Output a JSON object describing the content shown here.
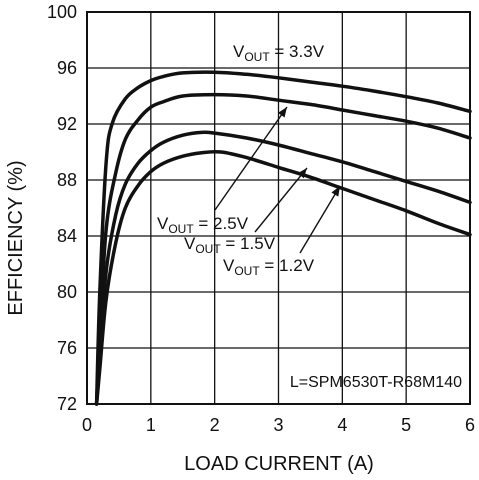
{
  "chart_data": {
    "type": "line",
    "xlabel": "LOAD CURRENT (A)",
    "ylabel": "EFFICIENCY (%)",
    "xlim": [
      0,
      6
    ],
    "ylim": [
      72,
      100
    ],
    "x_ticks": [
      "0",
      "1",
      "2",
      "3",
      "4",
      "5",
      "6"
    ],
    "y_ticks": [
      "72",
      "76",
      "80",
      "84",
      "88",
      "92",
      "96",
      "100"
    ],
    "grid": true,
    "note": "L=SPM6530T-R68M140",
    "series": [
      {
        "label_main": "V",
        "label_sub": "OUT",
        "label_value": " = 3.3V",
        "x": [
          0.15,
          0.2,
          0.3,
          0.4,
          0.6,
          0.8,
          1.0,
          1.2,
          1.5,
          2.0,
          2.5,
          3.0,
          3.5,
          4.0,
          4.5,
          5.0,
          5.5,
          6.0
        ],
        "y": [
          72,
          80,
          89.3,
          92.1,
          93.8,
          94.6,
          95.1,
          95.4,
          95.65,
          95.7,
          95.55,
          95.3,
          95.0,
          94.7,
          94.35,
          93.95,
          93.5,
          92.9
        ]
      },
      {
        "label_main": "V",
        "label_sub": "OUT",
        "label_value": " = 2.5V",
        "x": [
          0.15,
          0.2,
          0.3,
          0.45,
          0.6,
          0.8,
          1.0,
          1.2,
          1.5,
          2.0,
          2.5,
          3.0,
          3.5,
          4.0,
          4.5,
          5.0,
          5.5,
          6.0
        ],
        "y": [
          72,
          77,
          84.5,
          88.5,
          90.9,
          92.3,
          93.2,
          93.6,
          94.0,
          94.1,
          94.0,
          93.7,
          93.4,
          93.0,
          92.6,
          92.2,
          91.7,
          91.0
        ]
      },
      {
        "label_main": "V",
        "label_sub": "OUT",
        "label_value": " = 1.5V",
        "x": [
          0.15,
          0.2,
          0.3,
          0.45,
          0.6,
          0.8,
          1.0,
          1.2,
          1.5,
          1.8,
          2.0,
          2.5,
          3.0,
          3.5,
          4.0,
          4.5,
          5.0,
          5.5,
          6.0
        ],
        "y": [
          72,
          75.5,
          81.5,
          85.5,
          87.7,
          89.2,
          90.1,
          90.7,
          91.2,
          91.4,
          91.35,
          91.0,
          90.5,
          89.9,
          89.3,
          88.6,
          87.9,
          87.2,
          86.4
        ]
      },
      {
        "label_main": "V",
        "label_sub": "OUT",
        "label_value": " = 1.2V",
        "x": [
          0.15,
          0.2,
          0.3,
          0.45,
          0.6,
          0.8,
          1.0,
          1.2,
          1.5,
          1.8,
          2.1,
          2.5,
          3.0,
          3.5,
          4.0,
          4.5,
          5.0,
          5.5,
          6.0
        ],
        "y": [
          72,
          74.5,
          79.5,
          83.5,
          86.0,
          87.6,
          88.6,
          89.2,
          89.7,
          89.95,
          90.0,
          89.6,
          88.9,
          88.2,
          87.4,
          86.6,
          85.8,
          84.9,
          84.1
        ]
      }
    ]
  }
}
